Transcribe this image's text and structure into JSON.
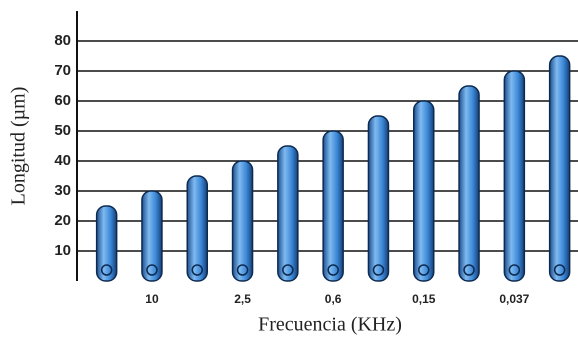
{
  "chart_data": {
    "type": "bar",
    "x_label": "Frecuencia (KHz)",
    "y_label": "Longitud (µm)",
    "categories": [
      null,
      "10",
      null,
      "2,5",
      null,
      "0,6",
      null,
      "0,15",
      null,
      "0,037",
      null
    ],
    "values": [
      25,
      30,
      35,
      40,
      45,
      50,
      55,
      60,
      65,
      70,
      75
    ],
    "color": "#3a86d6",
    "ylim": [
      0,
      90
    ],
    "yticks": [
      10,
      20,
      30,
      40,
      50,
      60,
      70,
      80
    ],
    "grid": true
  }
}
